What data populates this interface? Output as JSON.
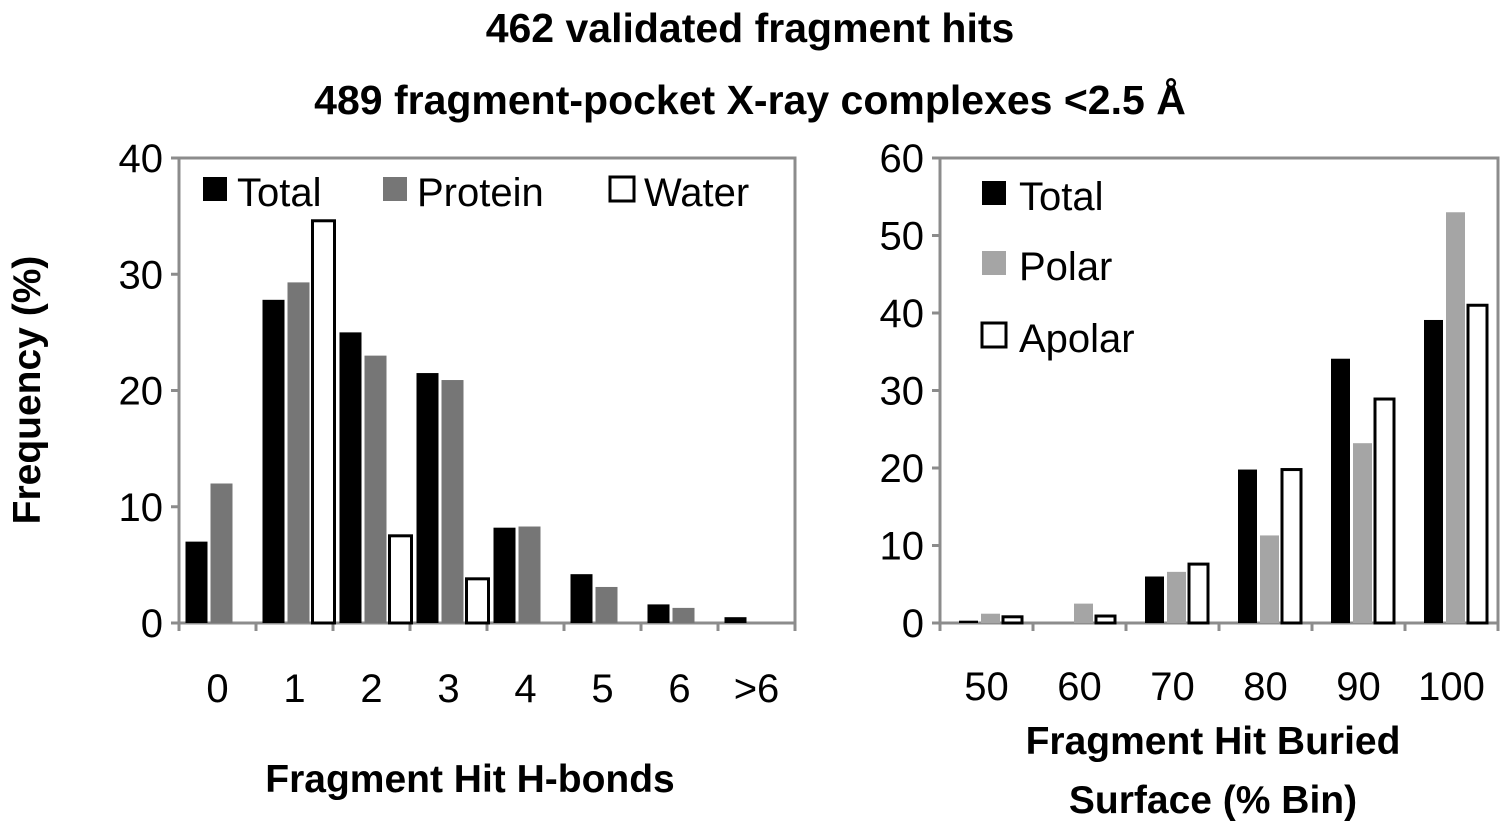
{
  "title_lines": [
    "462 validated fragment hits",
    "489 fragment-pocket X-ray complexes <2.5 Å"
  ],
  "colors": {
    "total": "#000000",
    "protein": "#767676",
    "polar": "#a5a5a5",
    "water": "#ffffff",
    "apolar": "#ffffff",
    "axis": "#8c8c8c"
  },
  "chart_data": [
    {
      "type": "bar",
      "ylabel": "Frequency (%)",
      "xlabel_lines": [
        "Fragment Hit H-bonds"
      ],
      "categories": [
        "0",
        "1",
        "2",
        "3",
        "4",
        "5",
        "6",
        ">6"
      ],
      "ylim": [
        0,
        40
      ],
      "yticks": [
        "0",
        "10",
        "20",
        "30",
        "40"
      ],
      "grid": false,
      "legend": "top",
      "series": [
        {
          "name": "Total",
          "color": "#000000",
          "values": [
            7,
            27.8,
            25,
            21.5,
            8.2,
            4.2,
            1.6,
            0.5
          ]
        },
        {
          "name": "Protein",
          "color": "#767676",
          "values": [
            12,
            29.3,
            23,
            20.9,
            8.3,
            3.1,
            1.3,
            0
          ]
        },
        {
          "name": "Water",
          "color": "#ffffff",
          "values": [
            0,
            34.6,
            7.5,
            3.8,
            0,
            0,
            0,
            0
          ]
        }
      ]
    },
    {
      "type": "bar",
      "ylabel": "",
      "xlabel_lines": [
        "Fragment Hit Buried",
        "Surface (% Bin)"
      ],
      "categories": [
        "50",
        "60",
        "70",
        "80",
        "90",
        "100"
      ],
      "ylim": [
        0,
        60
      ],
      "yticks": [
        "0",
        "10",
        "20",
        "30",
        "40",
        "50",
        "60"
      ],
      "grid": false,
      "legend": "top-left",
      "series": [
        {
          "name": "Total",
          "color": "#000000",
          "values": [
            0.3,
            0,
            6,
            19.8,
            34.1,
            39.1
          ]
        },
        {
          "name": "Polar",
          "color": "#a5a5a5",
          "values": [
            1.2,
            2.5,
            6.6,
            11.3,
            23.2,
            53
          ]
        },
        {
          "name": "Apolar",
          "color": "#ffffff",
          "values": [
            0.8,
            0.9,
            7.6,
            19.8,
            28.9,
            41
          ]
        }
      ]
    }
  ]
}
